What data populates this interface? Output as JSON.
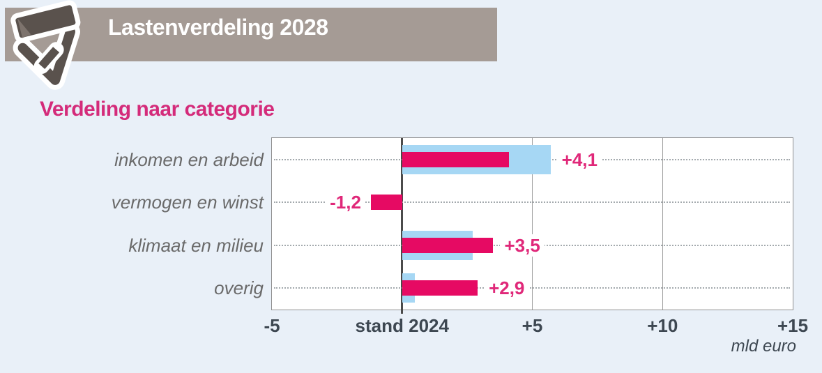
{
  "page": {
    "background_color": "#e9f0f8"
  },
  "header": {
    "title": "Lastenverdeling 2028",
    "icon": "wallet-icon",
    "banner_color": "#a59b95",
    "icon_color": "#5a524d",
    "text_color": "#ffffff"
  },
  "chart_data": {
    "type": "bar",
    "orientation": "horizontal",
    "title": "Verdeling naar categorie",
    "title_color": "#d42b7a",
    "unit_label": "mld euro",
    "categories": [
      "inkomen en arbeid",
      "vermogen en winst",
      "klimaat en milieu",
      "overig"
    ],
    "series": [
      {
        "name": "pink_bars",
        "color": "#e60a63",
        "values": [
          4.1,
          -1.2,
          3.5,
          2.9
        ],
        "value_labels": [
          "+4,1",
          "-1,2",
          "+3,5",
          "+2,9"
        ]
      },
      {
        "name": "blue_bars",
        "color": "#a6d7f4",
        "values": [
          5.7,
          0,
          2.7,
          0.5
        ]
      }
    ],
    "xlim": [
      -5,
      15
    ],
    "x_ticks": [
      {
        "value": -5,
        "label": "-5"
      },
      {
        "value": 0,
        "label": "stand 2024"
      },
      {
        "value": 5,
        "label": "+5"
      },
      {
        "value": 10,
        "label": "+10"
      },
      {
        "value": 15,
        "label": "+15"
      }
    ],
    "zero_line": {
      "value": 0,
      "label": "stand 2024",
      "color": "#4b4b4b"
    },
    "grid_values": [
      5,
      10
    ],
    "grid_on": true,
    "legend_position": "none"
  }
}
